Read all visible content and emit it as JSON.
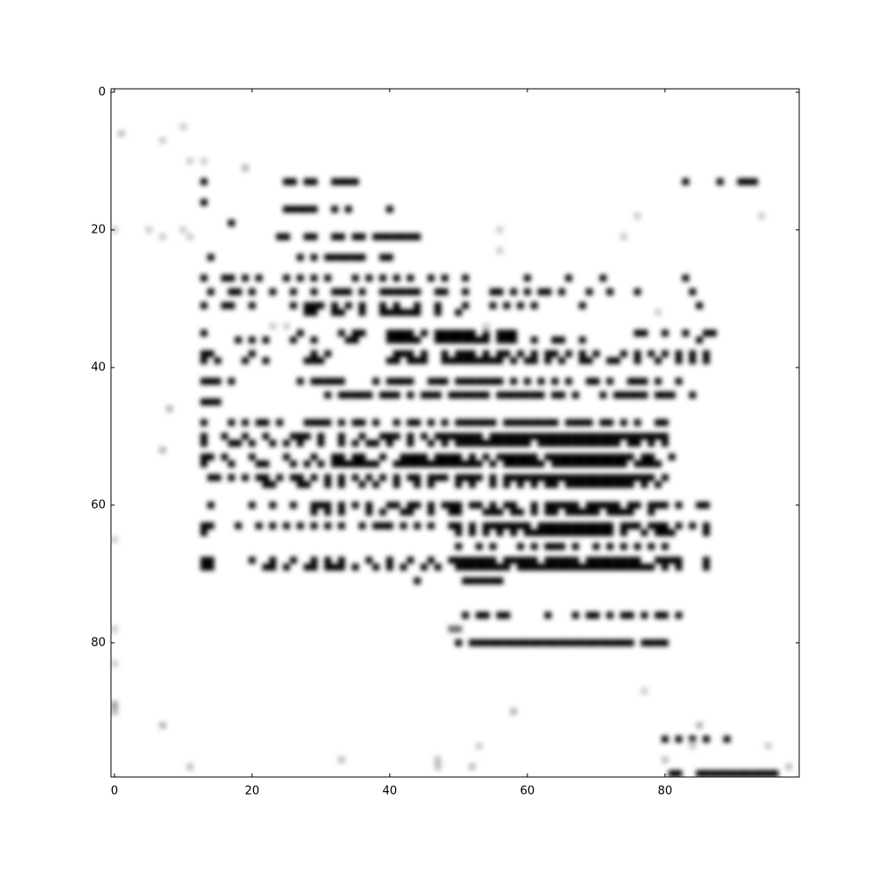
{
  "chart_data": {
    "type": "heatmap",
    "title": "",
    "xlabel": "",
    "ylabel": "",
    "colormap": "gray_r",
    "colors": {
      "low": "#ffffff",
      "high": "#000000",
      "axis": "#000000"
    },
    "xlim": [
      -0.5,
      99.5
    ],
    "ylim": [
      99.5,
      -0.5
    ],
    "y_inverted": true,
    "grid": false,
    "interpolation": "smooth",
    "x_ticks": [
      0,
      20,
      40,
      60,
      80
    ],
    "y_ticks": [
      0,
      20,
      40,
      60,
      80
    ],
    "x_tick_labels": [
      "0",
      "20",
      "40",
      "60",
      "80"
    ],
    "y_tick_labels": [
      "0",
      "20",
      "40",
      "60",
      "80"
    ],
    "matrix_shape": [
      100,
      100
    ],
    "nonzero_cells_approx": [
      {
        "row": 13,
        "cols": [
          13,
          25,
          26,
          28,
          29,
          32,
          33,
          34,
          35,
          83,
          88,
          91,
          92,
          93
        ],
        "value": 1.0
      },
      {
        "row": 16,
        "cols": [
          13
        ],
        "value": 1.0
      },
      {
        "row": 17,
        "cols": [
          25,
          26,
          27,
          28,
          29,
          32,
          34,
          40
        ],
        "value": 1.0
      },
      {
        "row": 19,
        "cols": [
          17
        ],
        "value": 1.0
      },
      {
        "row": 21,
        "cols": [
          24,
          25,
          28,
          29,
          32,
          33,
          35,
          36,
          38,
          39,
          40,
          41,
          42,
          43,
          44
        ],
        "value": 1.0
      },
      {
        "row": 24,
        "cols": [
          14,
          27,
          29,
          31,
          32,
          33,
          34,
          35,
          36,
          39,
          40
        ],
        "value": 1.0
      },
      {
        "row": 27,
        "cols": [
          13,
          16,
          17,
          19,
          21,
          25,
          27,
          29,
          31,
          35,
          37,
          39,
          41,
          43,
          46,
          48,
          51,
          60,
          66,
          71,
          83
        ],
        "value": 1.0
      },
      {
        "row": 29,
        "cols": [
          14,
          17,
          18,
          20,
          23,
          26,
          29,
          32,
          33,
          34,
          36,
          39,
          40,
          41,
          42,
          43,
          44,
          47,
          48,
          51,
          55,
          56,
          58,
          60,
          62,
          63,
          65,
          69,
          72,
          76,
          84
        ],
        "value": 1.0
      },
      {
        "row": 31,
        "cols": [
          13,
          16,
          17,
          20,
          26,
          28,
          29,
          30,
          32,
          34,
          36,
          39,
          41,
          44,
          47,
          51,
          55,
          57,
          59,
          61,
          68,
          85
        ],
        "value": 1.0
      },
      {
        "row": 32,
        "cols": [
          28,
          29,
          32,
          33,
          36,
          39,
          40,
          41,
          42,
          43,
          44,
          47,
          50
        ],
        "value": 1.0
      },
      {
        "row": 35,
        "cols": [
          13,
          27,
          33,
          35,
          36,
          40,
          41,
          42,
          43,
          45,
          47,
          48,
          49,
          50,
          51,
          52,
          54,
          56,
          57,
          58,
          76,
          77,
          80,
          83,
          86,
          87
        ],
        "value": 1.0
      },
      {
        "row": 36,
        "cols": [
          18,
          20,
          22,
          26,
          29,
          34,
          35,
          40,
          41,
          42,
          43,
          44,
          47,
          48,
          49,
          50,
          51,
          52,
          53,
          54,
          56,
          57,
          58,
          61,
          64,
          65,
          68,
          85
        ],
        "value": 1.0
      },
      {
        "row": 38,
        "cols": [
          13,
          14,
          20,
          29,
          31,
          41,
          42,
          43,
          45,
          48,
          50,
          51,
          52,
          54,
          56,
          57,
          59,
          61,
          63,
          64,
          66,
          68,
          70,
          74,
          76,
          78,
          80,
          82,
          84,
          86
        ],
        "value": 1.0
      },
      {
        "row": 39,
        "cols": [
          13,
          15,
          19,
          22,
          28,
          29,
          30,
          40,
          41,
          43,
          44,
          45,
          48,
          49,
          50,
          51,
          52,
          53,
          54,
          55,
          56,
          58,
          60,
          61,
          63,
          65,
          68,
          69,
          72,
          73,
          76,
          79,
          82,
          84,
          86
        ],
        "value": 1.0
      },
      {
        "row": 42,
        "cols": [
          13,
          14,
          15,
          17,
          27,
          29,
          30,
          31,
          32,
          33,
          38,
          40,
          41,
          42,
          43,
          46,
          47,
          48,
          50,
          51,
          52,
          53,
          54,
          55,
          56,
          58,
          60,
          62,
          64,
          66,
          69,
          70,
          72,
          75,
          76,
          77,
          79,
          82
        ],
        "value": 1.0
      },
      {
        "row": 44,
        "cols": [
          31,
          33,
          34,
          35,
          36,
          37,
          39,
          40,
          41,
          43,
          45,
          46,
          47,
          49,
          50,
          51,
          52,
          53,
          54,
          56,
          57,
          58,
          59,
          60,
          61,
          62,
          64,
          65,
          67,
          71,
          73,
          74,
          75,
          76,
          77,
          79,
          80,
          81,
          84
        ],
        "value": 1.0
      },
      {
        "row": 45,
        "cols": [
          13,
          14,
          15
        ],
        "value": 1.0
      },
      {
        "row": 48,
        "cols": [
          13,
          17,
          19,
          21,
          22,
          24,
          28,
          29,
          30,
          31,
          33,
          35,
          36,
          38,
          41,
          43,
          44,
          46,
          48,
          50,
          51,
          52,
          53,
          54,
          55,
          57,
          58,
          59,
          60,
          61,
          62,
          63,
          64,
          66,
          67,
          68,
          69,
          71,
          72,
          74,
          76,
          79,
          80
        ],
        "value": 1.0
      },
      {
        "row": 50,
        "cols": [
          13,
          16,
          19,
          22,
          26,
          27,
          28,
          30,
          33,
          36,
          39,
          40,
          41,
          43,
          45,
          47,
          48,
          49,
          50,
          51,
          52,
          53,
          55,
          56,
          57,
          58,
          59,
          60,
          61,
          62,
          63,
          64,
          65,
          66,
          67,
          68,
          69,
          70,
          71,
          72,
          73,
          74,
          75,
          76,
          77,
          78,
          79,
          80
        ],
        "value": 1.0
      },
      {
        "row": 51,
        "cols": [
          13,
          17,
          18,
          20,
          23,
          25,
          27,
          30,
          33,
          35,
          37,
          38,
          40,
          43,
          46,
          48,
          50,
          51,
          52,
          53,
          54,
          55,
          56,
          57,
          58,
          59,
          60,
          62,
          63,
          64,
          65,
          66,
          67,
          68,
          69,
          70,
          71,
          72,
          73,
          75,
          76,
          78,
          80
        ],
        "value": 1.0
      },
      {
        "row": 53,
        "cols": [
          13,
          14,
          16,
          20,
          25,
          29,
          32,
          33,
          35,
          36,
          39,
          42,
          43,
          44,
          45,
          47,
          48,
          49,
          50,
          52,
          54,
          56,
          57,
          58,
          59,
          60,
          61,
          63,
          64,
          65,
          66,
          67,
          68,
          69,
          70,
          71,
          72,
          73,
          74,
          75,
          77,
          78,
          81
        ],
        "value": 1.0
      },
      {
        "row": 54,
        "cols": [
          13,
          17,
          21,
          22,
          26,
          28,
          30,
          32,
          33,
          34,
          35,
          36,
          37,
          38,
          41,
          42,
          43,
          44,
          45,
          46,
          47,
          48,
          49,
          50,
          51,
          52,
          53,
          55,
          57,
          58,
          59,
          60,
          61,
          62,
          64,
          65,
          66,
          67,
          68,
          69,
          70,
          71,
          72,
          73,
          74,
          76,
          77,
          78,
          79
        ],
        "value": 1.0
      },
      {
        "row": 56,
        "cols": [
          14,
          15,
          17,
          19,
          21,
          22,
          24,
          26,
          27,
          29,
          31,
          33,
          35,
          37,
          39,
          41,
          43,
          44,
          46,
          47,
          48,
          50,
          51,
          52,
          53,
          55,
          57,
          58,
          59,
          60,
          61,
          62,
          63,
          64,
          65,
          66,
          67,
          68,
          69,
          70,
          71,
          72,
          73,
          74,
          75,
          76,
          77,
          78,
          80
        ],
        "value": 1.0
      },
      {
        "row": 57,
        "cols": [
          22,
          23,
          27,
          28,
          31,
          33,
          36,
          38,
          41,
          44,
          46,
          50,
          52,
          55,
          57,
          59,
          61,
          63,
          64,
          66,
          67,
          68,
          69,
          70,
          71,
          72,
          73,
          74,
          75,
          77,
          79
        ],
        "value": 1.0
      },
      {
        "row": 60,
        "cols": [
          14,
          20,
          23,
          26,
          29,
          30,
          31,
          33,
          35,
          37,
          40,
          41,
          43,
          44,
          46,
          48,
          49,
          50,
          52,
          53,
          55,
          57,
          58,
          61,
          63,
          64,
          65,
          66,
          67,
          69,
          70,
          71,
          72,
          73,
          75,
          76,
          78,
          79,
          80,
          82,
          85,
          86
        ],
        "value": 1.0
      },
      {
        "row": 61,
        "cols": [
          29,
          31,
          33,
          37,
          39,
          42,
          43,
          46,
          49,
          50,
          54,
          55,
          56,
          58,
          59,
          61,
          63,
          64,
          66,
          67,
          68,
          69,
          70,
          72,
          73,
          74,
          75,
          78
        ],
        "value": 1.0
      },
      {
        "row": 63,
        "cols": [
          13,
          14,
          18,
          21,
          23,
          25,
          27,
          29,
          31,
          33,
          36,
          38,
          39,
          40,
          42,
          44,
          46,
          49,
          50,
          52,
          54,
          55,
          56,
          57,
          58,
          59,
          60,
          62,
          63,
          64,
          65,
          66,
          67,
          68,
          69,
          70,
          71,
          72,
          74,
          75,
          76,
          78,
          79,
          80,
          82,
          84,
          86
        ],
        "value": 1.0
      },
      {
        "row": 64,
        "cols": [
          13,
          50,
          52,
          54,
          56,
          58,
          60,
          61,
          62,
          63,
          64,
          65,
          66,
          67,
          68,
          69,
          70,
          71,
          72,
          74,
          77,
          79,
          80,
          81,
          86
        ],
        "value": 1.0
      },
      {
        "row": 66,
        "cols": [
          50,
          53,
          55,
          59,
          61,
          63,
          64,
          65,
          67,
          70,
          72,
          74,
          76,
          78,
          80
        ],
        "value": 1.0
      },
      {
        "row": 68,
        "cols": [
          13,
          14,
          20,
          23,
          26,
          29,
          31,
          33,
          37,
          40,
          43,
          46,
          49,
          50,
          51,
          52,
          53,
          54,
          55,
          57,
          58,
          59,
          60,
          61,
          63,
          64,
          65,
          66,
          67,
          69,
          70,
          71,
          72,
          73,
          74,
          75,
          76,
          79,
          80,
          81,
          82,
          86
        ],
        "value": 1.0
      },
      {
        "row": 69,
        "cols": [
          13,
          14,
          22,
          23,
          25,
          28,
          29,
          31,
          32,
          33,
          35,
          38,
          40,
          42,
          45,
          47,
          50,
          51,
          52,
          53,
          54,
          55,
          56,
          57,
          59,
          60,
          61,
          62,
          63,
          64,
          65,
          66,
          67,
          68,
          69,
          70,
          71,
          72,
          73,
          74,
          75,
          76,
          77,
          78,
          80,
          82,
          86
        ],
        "value": 1.0
      },
      {
        "row": 71,
        "cols": [
          44,
          51,
          52,
          53,
          54,
          55,
          56
        ],
        "value": 1.0
      },
      {
        "row": 76,
        "cols": [
          51,
          53,
          54,
          56,
          57,
          63,
          67,
          69,
          70,
          72,
          74,
          75,
          77,
          79,
          80,
          82
        ],
        "value": 1.0
      },
      {
        "row": 78,
        "cols": [
          49,
          50
        ],
        "value": 0.6
      },
      {
        "row": 80,
        "cols": [
          50,
          52,
          53,
          54,
          55,
          56,
          57,
          58,
          59,
          60,
          61,
          62,
          63,
          64,
          65,
          66,
          67,
          68,
          69,
          70,
          71,
          72,
          73,
          74,
          75,
          77,
          78,
          79,
          80
        ],
        "value": 1.0
      },
      {
        "row": 94,
        "cols": [
          80,
          82,
          84,
          86,
          89
        ],
        "value": 1.0
      },
      {
        "row": 99,
        "cols": [
          81,
          82,
          85,
          86,
          87,
          88,
          89,
          90,
          91,
          92,
          93,
          94,
          95,
          96
        ],
        "value": 1.0
      }
    ],
    "faint_cells_approx": [
      {
        "row": 5,
        "cols": [
          10
        ],
        "value": 0.2
      },
      {
        "row": 6,
        "cols": [
          1
        ],
        "value": 0.25
      },
      {
        "row": 7,
        "cols": [
          7
        ],
        "value": 0.2
      },
      {
        "row": 10,
        "cols": [
          11,
          13
        ],
        "value": 0.2
      },
      {
        "row": 11,
        "cols": [
          19
        ],
        "value": 0.3
      },
      {
        "row": 18,
        "cols": [
          76,
          94
        ],
        "value": 0.2
      },
      {
        "row": 20,
        "cols": [
          0,
          5,
          10,
          56
        ],
        "value": 0.2
      },
      {
        "row": 21,
        "cols": [
          7,
          11,
          74
        ],
        "value": 0.2
      },
      {
        "row": 23,
        "cols": [
          56
        ],
        "value": 0.2
      },
      {
        "row": 32,
        "cols": [
          79
        ],
        "value": 0.2
      },
      {
        "row": 34,
        "cols": [
          23,
          25,
          54
        ],
        "value": 0.2
      },
      {
        "row": 46,
        "cols": [
          8
        ],
        "value": 0.3
      },
      {
        "row": 52,
        "cols": [
          7
        ],
        "value": 0.3
      },
      {
        "row": 65,
        "cols": [
          0
        ],
        "value": 0.2
      },
      {
        "row": 78,
        "cols": [
          0
        ],
        "value": 0.2
      },
      {
        "row": 83,
        "cols": [
          0
        ],
        "value": 0.2
      },
      {
        "row": 87,
        "cols": [
          77
        ],
        "value": 0.2
      },
      {
        "row": 89,
        "cols": [
          0
        ],
        "value": 0.4
      },
      {
        "row": 90,
        "cols": [
          0,
          58
        ],
        "value": 0.3
      },
      {
        "row": 92,
        "cols": [
          7,
          85
        ],
        "value": 0.3
      },
      {
        "row": 95,
        "cols": [
          53,
          84,
          95
        ],
        "value": 0.2
      },
      {
        "row": 97,
        "cols": [
          33,
          47,
          80
        ],
        "value": 0.25
      },
      {
        "row": 98,
        "cols": [
          11,
          47,
          52,
          98
        ],
        "value": 0.25
      }
    ]
  }
}
